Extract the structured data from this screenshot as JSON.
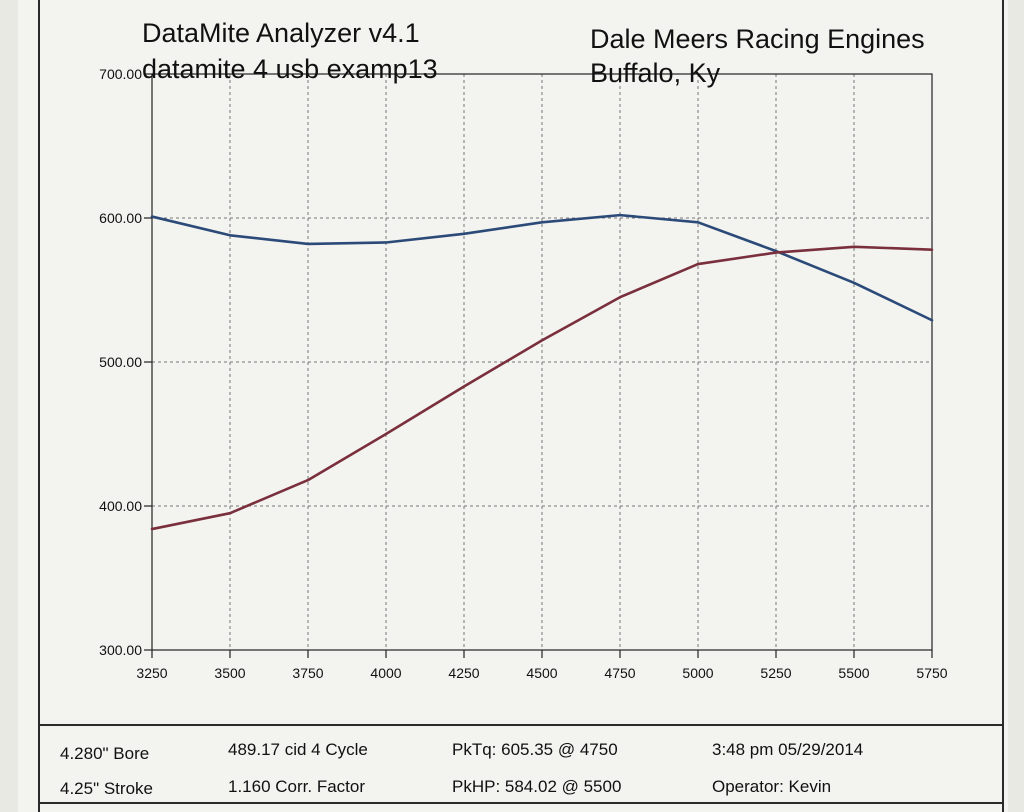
{
  "header": {
    "app_title": "DataMite Analyzer v4.1",
    "file_name": "datamite 4 usb examp13",
    "company": "Dale Meers Racing Engines",
    "location": "Buffalo, Ky"
  },
  "footer": {
    "bore": "4.280\" Bore",
    "stroke": "4.25\" Stroke",
    "cid_cycle": "489.17 cid  4 Cycle",
    "corr_factor": "1.160 Corr. Factor",
    "peak_torque": "PkTq: 605.35 @  4750",
    "peak_hp": "PkHP: 584.02 @  5500",
    "datetime": "3:48 pm  05/29/2014",
    "operator": "Operator: Kevin"
  },
  "colors": {
    "torque_line": "#2b4a78",
    "hp_line": "#7a2f3c",
    "grid": "#777777",
    "axis": "#222222"
  },
  "chart_data": {
    "type": "line",
    "title": "",
    "xlabel": "",
    "ylabel": "",
    "x": [
      3250,
      3500,
      3750,
      4000,
      4250,
      4500,
      4750,
      5000,
      5250,
      5500,
      5750
    ],
    "x_tick_labels": [
      "3250",
      "3500",
      "3750",
      "4000",
      "4250",
      "4500",
      "4750",
      "5000",
      "5250",
      "5500",
      "5750"
    ],
    "y_tick_values": [
      300,
      400,
      500,
      600,
      700
    ],
    "y_tick_labels": [
      "300.00",
      "400.00",
      "500.00",
      "600.00",
      "700.00"
    ],
    "xlim": [
      3250,
      5750
    ],
    "ylim": [
      300,
      700
    ],
    "grid": true,
    "series": [
      {
        "key": "torque",
        "values": [
          601,
          588,
          582,
          583,
          589,
          597,
          602,
          597,
          577,
          555,
          529
        ]
      },
      {
        "key": "hp",
        "values": [
          384,
          395,
          418,
          450,
          483,
          515,
          545,
          568,
          576,
          580,
          578
        ]
      }
    ]
  }
}
